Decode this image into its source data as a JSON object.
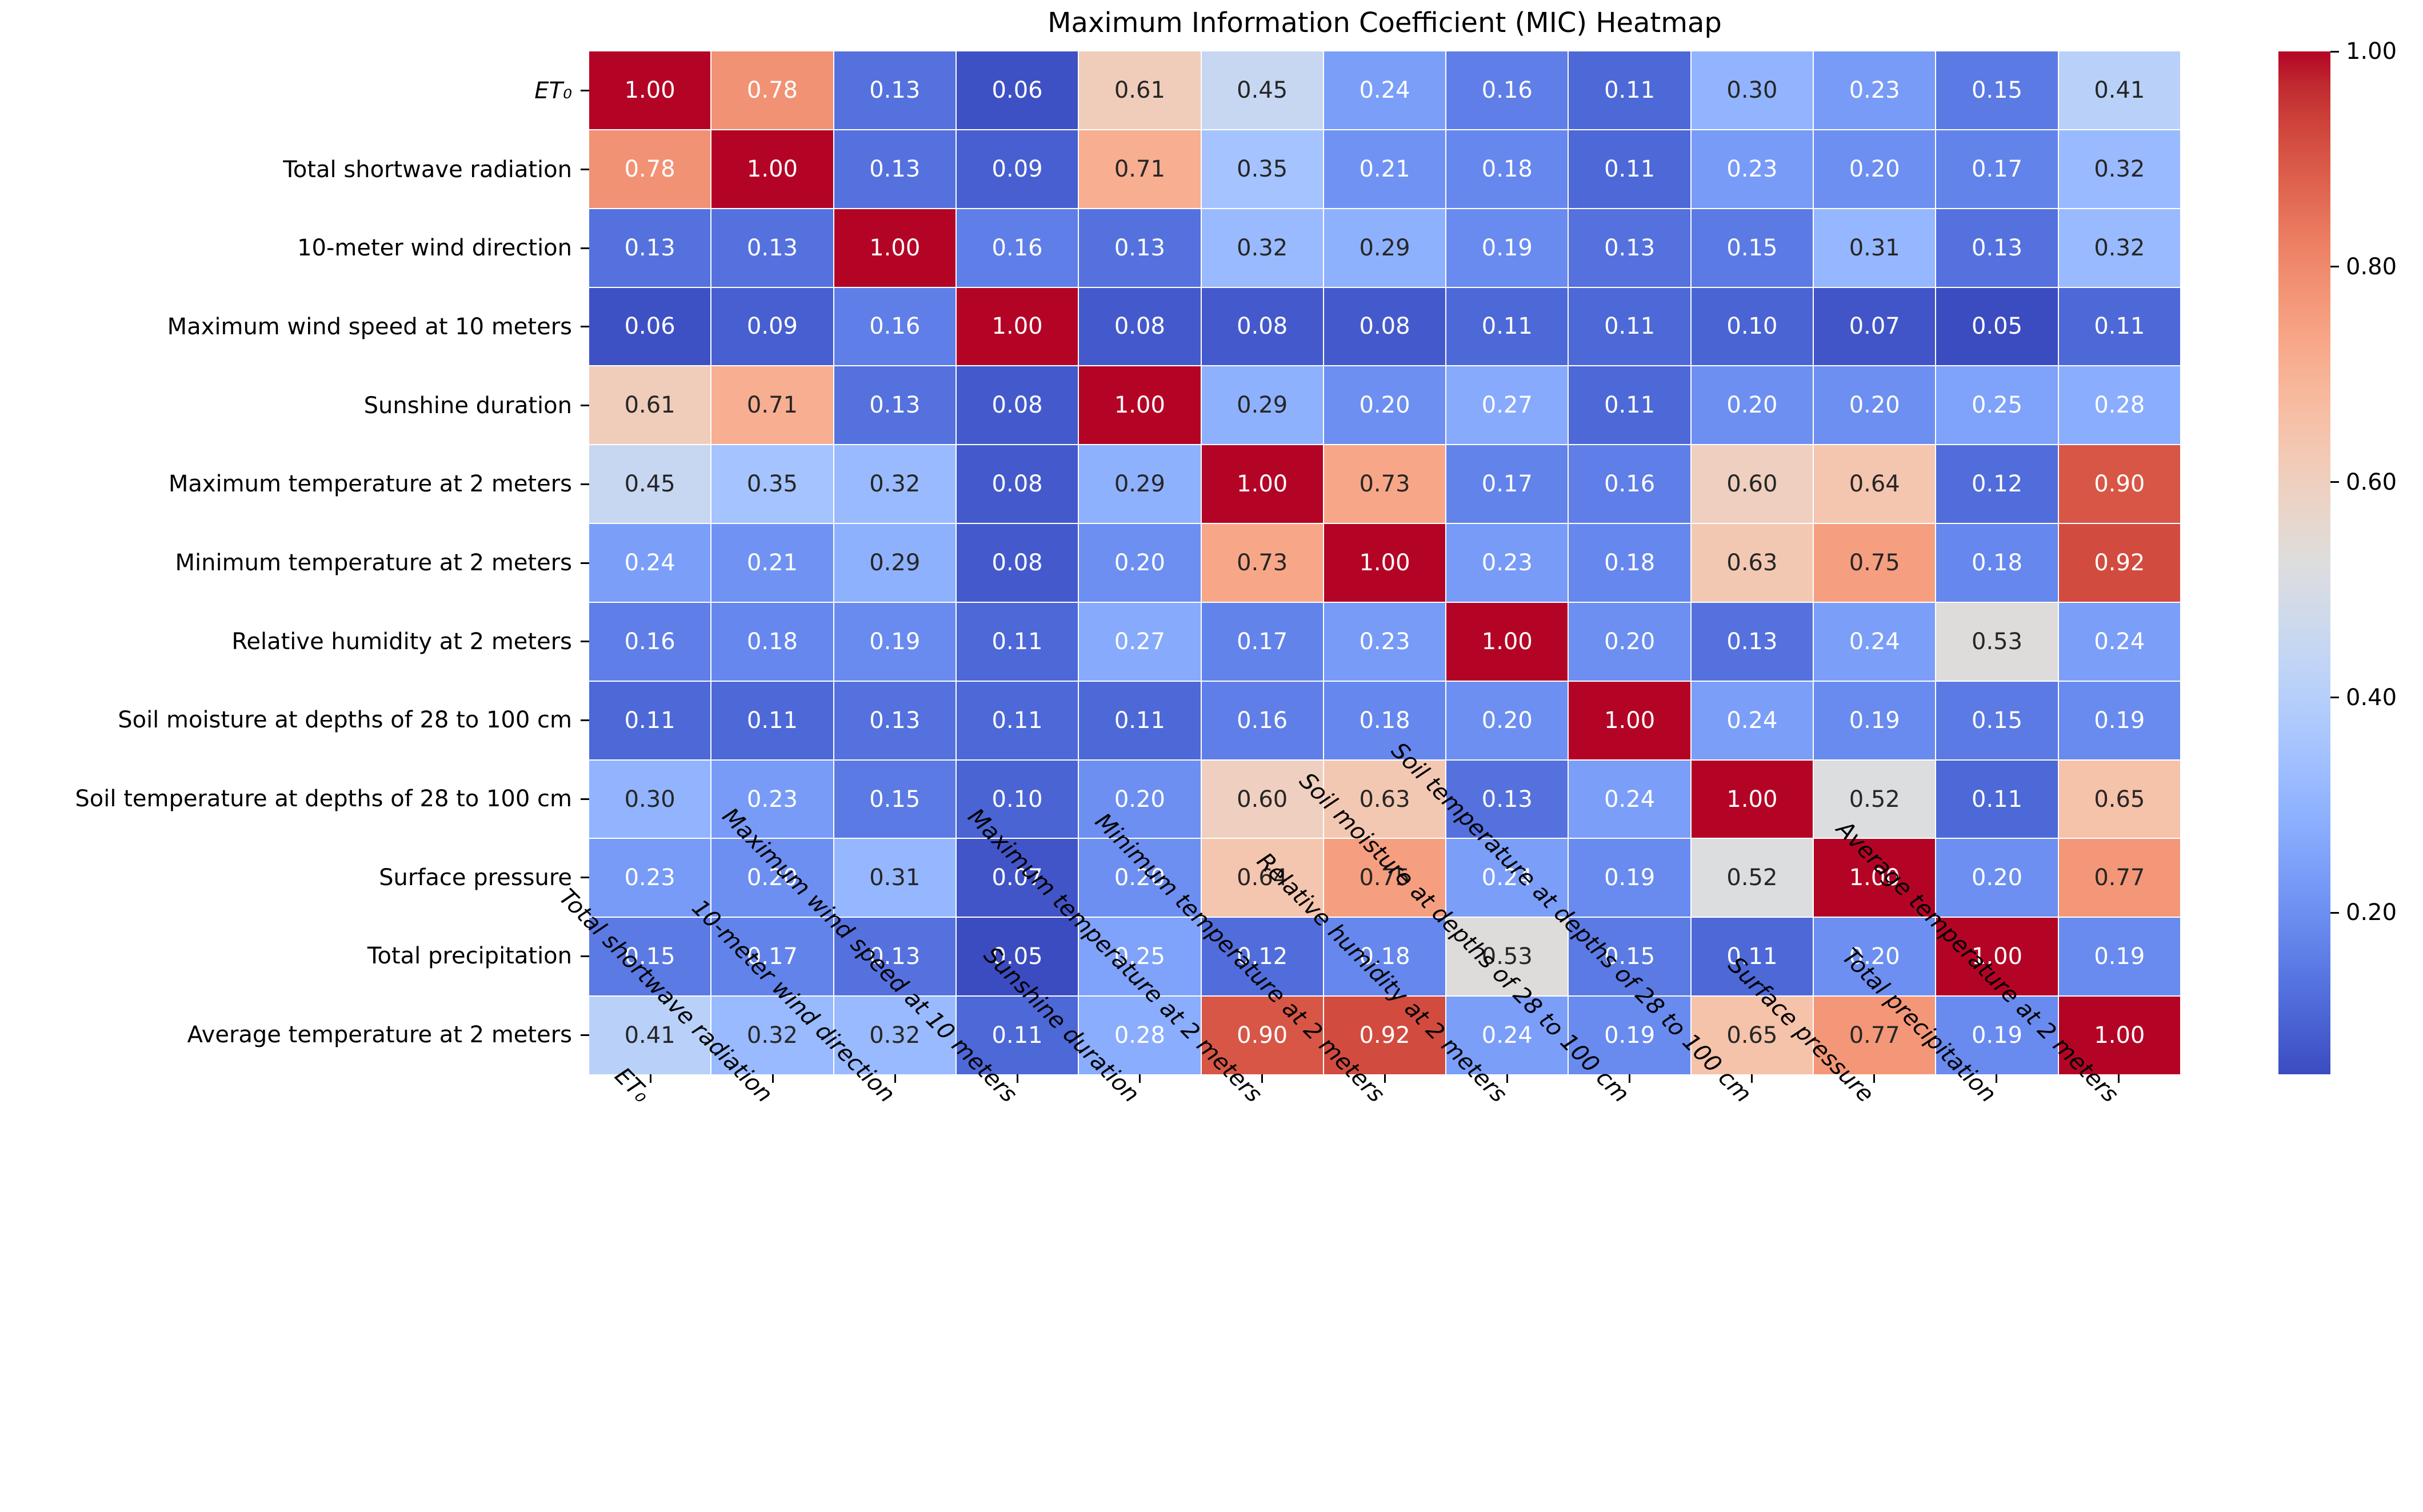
{
  "title": "Maximum Information Coefficient (MIC) Heatmap",
  "colors": {
    "accent_min": "#3b4cc0",
    "accent_mid": "#dddddd",
    "accent_max": "#b40426",
    "dark_text": "#262626",
    "light_text": "#ffffff",
    "background": "#ffffff"
  },
  "chart_data": {
    "type": "heatmap",
    "title": "Maximum Information Coefficient (MIC) Heatmap",
    "colormap": "coolwarm",
    "vmin": 0.05,
    "vmax": 1.0,
    "grid": false,
    "legend_position": "right",
    "x_label_rotation": 45,
    "value_format": "2-decimals",
    "variables": [
      {
        "text": "ET₀",
        "math": true
      },
      {
        "text": "Total shortwave radiation"
      },
      {
        "text": "10-meter wind direction"
      },
      {
        "text": "Maximum wind speed at 10 meters"
      },
      {
        "text": "Sunshine duration"
      },
      {
        "text": "Maximum temperature at 2 meters"
      },
      {
        "text": "Minimum temperature at 2 meters"
      },
      {
        "text": "Relative humidity at 2 meters"
      },
      {
        "text": "Soil moisture at depths of 28 to 100 cm"
      },
      {
        "text": "Soil temperature at depths of 28 to 100 cm"
      },
      {
        "text": "Surface pressure"
      },
      {
        "text": "Total precipitation"
      },
      {
        "text": "Average temperature at 2 meters"
      }
    ],
    "matrix": [
      [
        1.0,
        0.78,
        0.13,
        0.06,
        0.61,
        0.45,
        0.24,
        0.16,
        0.11,
        0.3,
        0.23,
        0.15,
        0.41
      ],
      [
        0.78,
        1.0,
        0.13,
        0.09,
        0.71,
        0.35,
        0.21,
        0.18,
        0.11,
        0.23,
        0.2,
        0.17,
        0.32
      ],
      [
        0.13,
        0.13,
        1.0,
        0.16,
        0.13,
        0.32,
        0.29,
        0.19,
        0.13,
        0.15,
        0.31,
        0.13,
        0.32
      ],
      [
        0.06,
        0.09,
        0.16,
        1.0,
        0.08,
        0.08,
        0.08,
        0.11,
        0.11,
        0.1,
        0.07,
        0.05,
        0.11
      ],
      [
        0.61,
        0.71,
        0.13,
        0.08,
        1.0,
        0.29,
        0.2,
        0.27,
        0.11,
        0.2,
        0.2,
        0.25,
        0.28
      ],
      [
        0.45,
        0.35,
        0.32,
        0.08,
        0.29,
        1.0,
        0.73,
        0.17,
        0.16,
        0.6,
        0.64,
        0.12,
        0.9
      ],
      [
        0.24,
        0.21,
        0.29,
        0.08,
        0.2,
        0.73,
        1.0,
        0.23,
        0.18,
        0.63,
        0.75,
        0.18,
        0.92
      ],
      [
        0.16,
        0.18,
        0.19,
        0.11,
        0.27,
        0.17,
        0.23,
        1.0,
        0.2,
        0.13,
        0.24,
        0.53,
        0.24
      ],
      [
        0.11,
        0.11,
        0.13,
        0.11,
        0.11,
        0.16,
        0.18,
        0.2,
        1.0,
        0.24,
        0.19,
        0.15,
        0.19
      ],
      [
        0.3,
        0.23,
        0.15,
        0.1,
        0.2,
        0.6,
        0.63,
        0.13,
        0.24,
        1.0,
        0.52,
        0.11,
        0.65
      ],
      [
        0.23,
        0.2,
        0.31,
        0.07,
        0.2,
        0.64,
        0.75,
        0.24,
        0.19,
        0.52,
        1.0,
        0.2,
        0.77
      ],
      [
        0.15,
        0.17,
        0.13,
        0.05,
        0.25,
        0.12,
        0.18,
        0.53,
        0.15,
        0.11,
        0.2,
        1.0,
        0.19
      ],
      [
        0.41,
        0.32,
        0.32,
        0.11,
        0.28,
        0.9,
        0.92,
        0.24,
        0.19,
        0.65,
        0.77,
        0.19,
        1.0
      ]
    ],
    "colorbar_ticks": [
      {
        "value": 1.0,
        "label": "1.00"
      },
      {
        "value": 0.8,
        "label": "0.80"
      },
      {
        "value": 0.6,
        "label": "0.60"
      },
      {
        "value": 0.4,
        "label": "0.40"
      },
      {
        "value": 0.2,
        "label": "0.20"
      }
    ]
  }
}
